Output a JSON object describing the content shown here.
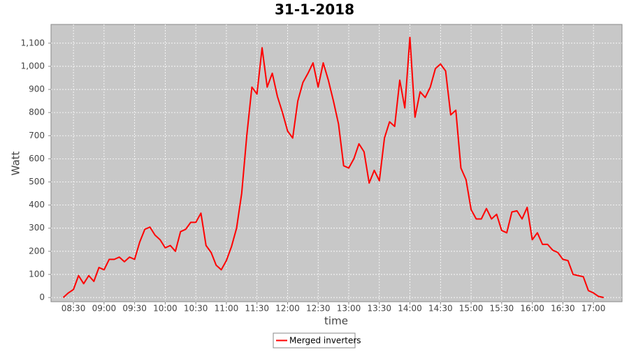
{
  "chart_data": {
    "type": "line",
    "title": "31-1-2018",
    "x_label": "time",
    "y_label": "Watt",
    "x": [
      "08:20",
      "08:25",
      "08:30",
      "08:35",
      "08:40",
      "08:45",
      "08:50",
      "08:55",
      "09:00",
      "09:05",
      "09:10",
      "09:15",
      "09:20",
      "09:25",
      "09:30",
      "09:35",
      "09:40",
      "09:45",
      "09:50",
      "09:55",
      "10:00",
      "10:05",
      "10:10",
      "10:15",
      "10:20",
      "10:25",
      "10:30",
      "10:35",
      "10:40",
      "10:45",
      "10:50",
      "10:55",
      "11:00",
      "11:05",
      "11:10",
      "11:15",
      "11:20",
      "11:25",
      "11:30",
      "11:35",
      "11:40",
      "11:45",
      "11:50",
      "11:55",
      "12:00",
      "12:05",
      "12:10",
      "12:15",
      "12:20",
      "12:25",
      "12:30",
      "12:35",
      "12:40",
      "12:45",
      "12:50",
      "12:55",
      "13:00",
      "13:05",
      "13:10",
      "13:15",
      "13:20",
      "13:25",
      "13:30",
      "13:35",
      "13:40",
      "13:45",
      "13:50",
      "13:55",
      "14:00",
      "14:05",
      "14:10",
      "14:15",
      "14:20",
      "14:25",
      "14:30",
      "14:35",
      "14:40",
      "14:45",
      "14:50",
      "14:55",
      "15:00",
      "15:05",
      "15:10",
      "15:15",
      "15:20",
      "15:25",
      "15:30",
      "15:35",
      "15:40",
      "15:45",
      "15:50",
      "15:55",
      "16:00",
      "16:05",
      "16:10",
      "16:15",
      "16:20",
      "16:25",
      "16:30",
      "16:35",
      "16:40",
      "16:45",
      "16:50",
      "16:55",
      "17:00",
      "17:05",
      "17:10"
    ],
    "series": [
      {
        "name": "Merged inverters",
        "color": "#ff0000",
        "values": [
          0,
          20,
          35,
          95,
          60,
          95,
          70,
          130,
          120,
          165,
          165,
          175,
          155,
          175,
          165,
          240,
          295,
          305,
          270,
          250,
          215,
          225,
          200,
          285,
          295,
          325,
          325,
          365,
          225,
          195,
          140,
          120,
          160,
          220,
          300,
          450,
          700,
          910,
          880,
          1080,
          910,
          970,
          870,
          800,
          720,
          690,
          850,
          930,
          970,
          1015,
          910,
          1015,
          940,
          850,
          750,
          570,
          560,
          600,
          665,
          630,
          495,
          550,
          505,
          690,
          760,
          740,
          940,
          820,
          1125,
          780,
          890,
          865,
          910,
          990,
          1010,
          980,
          790,
          810,
          560,
          510,
          380,
          340,
          340,
          385,
          340,
          360,
          290,
          280,
          370,
          375,
          340,
          390,
          250,
          280,
          230,
          230,
          205,
          195,
          165,
          160,
          100,
          95,
          90,
          30,
          20,
          5,
          0
        ]
      }
    ],
    "xlim": [
      "08:08",
      "17:28"
    ],
    "xticks": [
      "08:30",
      "09:00",
      "09:30",
      "10:00",
      "10:30",
      "11:00",
      "11:30",
      "12:00",
      "12:30",
      "13:00",
      "13:30",
      "14:00",
      "14:30",
      "15:00",
      "15:30",
      "16:00",
      "16:30",
      "17:00"
    ],
    "ylim": [
      -18,
      1181
    ],
    "yticks": [
      0,
      100,
      200,
      300,
      400,
      500,
      600,
      700,
      800,
      900,
      {
        "value": 1000,
        "label": "1,000"
      },
      {
        "value": 1100,
        "label": "1,100"
      }
    ],
    "grid": true,
    "legend": "bottom"
  }
}
